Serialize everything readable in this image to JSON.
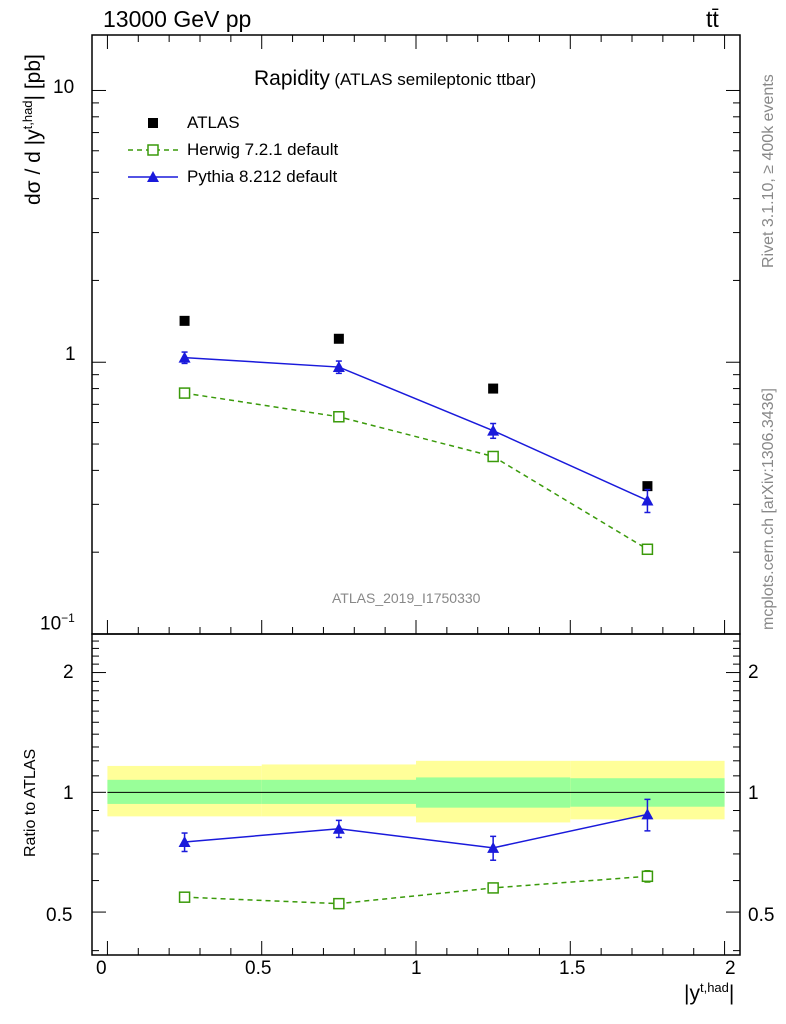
{
  "header": {
    "left": "13000 GeV pp",
    "right": "tt̄"
  },
  "title": {
    "main": "Rapidity",
    "sub": "(ATLAS semileptonic ttbar)"
  },
  "side_labels": {
    "rivet": "Rivet 3.1.10, ≥ 400k events",
    "mcplots": "mcplots.cern.ch [arXiv:1306.3436]"
  },
  "analysis_tag": "ATLAS_2019_I1750330",
  "y_label_top": "dσ / d |yt,had| [pb]",
  "y_label_top_parts": {
    "pre": "dσ / d |y",
    "sup": "t,had",
    "post": "| [pb]"
  },
  "y_label_ratio": "Ratio to ATLAS",
  "x_label": "|yt,had|",
  "x_label_parts": {
    "base": "|y",
    "sup": "t,had",
    "post": "|"
  },
  "chart_data": [
    {
      "type": "scatter",
      "panel": "main",
      "yscale": "log",
      "xlim": [
        -0.05,
        2.05
      ],
      "ylim": [
        0.1,
        16
      ],
      "x_ticks": [
        "0",
        "0.5",
        "1",
        "1.5",
        "2"
      ],
      "y_ticks": [
        "10",
        "1",
        "10−1"
      ],
      "legend_position": "top-left",
      "bins": [
        [
          0,
          0.5
        ],
        [
          0.5,
          1.0
        ],
        [
          1.0,
          1.5
        ],
        [
          1.5,
          2.0
        ]
      ],
      "x": [
        0.25,
        0.75,
        1.25,
        1.75
      ],
      "series": [
        {
          "name": "ATLAS",
          "values": [
            1.42,
            1.22,
            0.8,
            0.35
          ],
          "errors": [
            0.0,
            0.0,
            0.0,
            0.0
          ],
          "color": "#000000",
          "marker": "square-filled",
          "line": "none"
        },
        {
          "name": "Herwig 7.2.1 default",
          "values": [
            0.77,
            0.63,
            0.45,
            0.205
          ],
          "errors": [
            0.015,
            0.015,
            0.012,
            0.008
          ],
          "color": "#3a9a0a",
          "marker": "square-open",
          "line": "dashed"
        },
        {
          "name": "Pythia 8.212 default",
          "values": [
            1.04,
            0.96,
            0.56,
            0.31
          ],
          "errors": [
            0.05,
            0.05,
            0.035,
            0.03
          ],
          "color": "#1a1adb",
          "marker": "triangle",
          "line": "solid"
        }
      ]
    },
    {
      "type": "scatter",
      "panel": "ratio",
      "xlim": [
        -0.05,
        2.05
      ],
      "ylim": [
        0.39,
        2.5
      ],
      "y_ticks": [
        "0.5",
        "1",
        "2"
      ],
      "x": [
        0.25,
        0.75,
        1.25,
        1.75
      ],
      "bands": {
        "green": [
          [
            0.935,
            1.075
          ],
          [
            0.935,
            1.075
          ],
          [
            0.915,
            1.09
          ],
          [
            0.92,
            1.085
          ]
        ],
        "yellow": [
          [
            0.87,
            1.165
          ],
          [
            0.87,
            1.175
          ],
          [
            0.84,
            1.2
          ],
          [
            0.855,
            1.2
          ]
        ]
      },
      "series": [
        {
          "name": "Herwig 7.2.1 default",
          "values": [
            0.545,
            0.525,
            0.575,
            0.615
          ],
          "errors": [
            0.01,
            0.01,
            0.01,
            0.02
          ],
          "color": "#3a9a0a",
          "marker": "square-open",
          "line": "dashed"
        },
        {
          "name": "Pythia 8.212 default",
          "values": [
            0.75,
            0.81,
            0.725,
            0.88
          ],
          "errors": [
            0.04,
            0.04,
            0.05,
            0.08
          ],
          "color": "#1a1adb",
          "marker": "triangle",
          "line": "solid"
        }
      ]
    }
  ]
}
